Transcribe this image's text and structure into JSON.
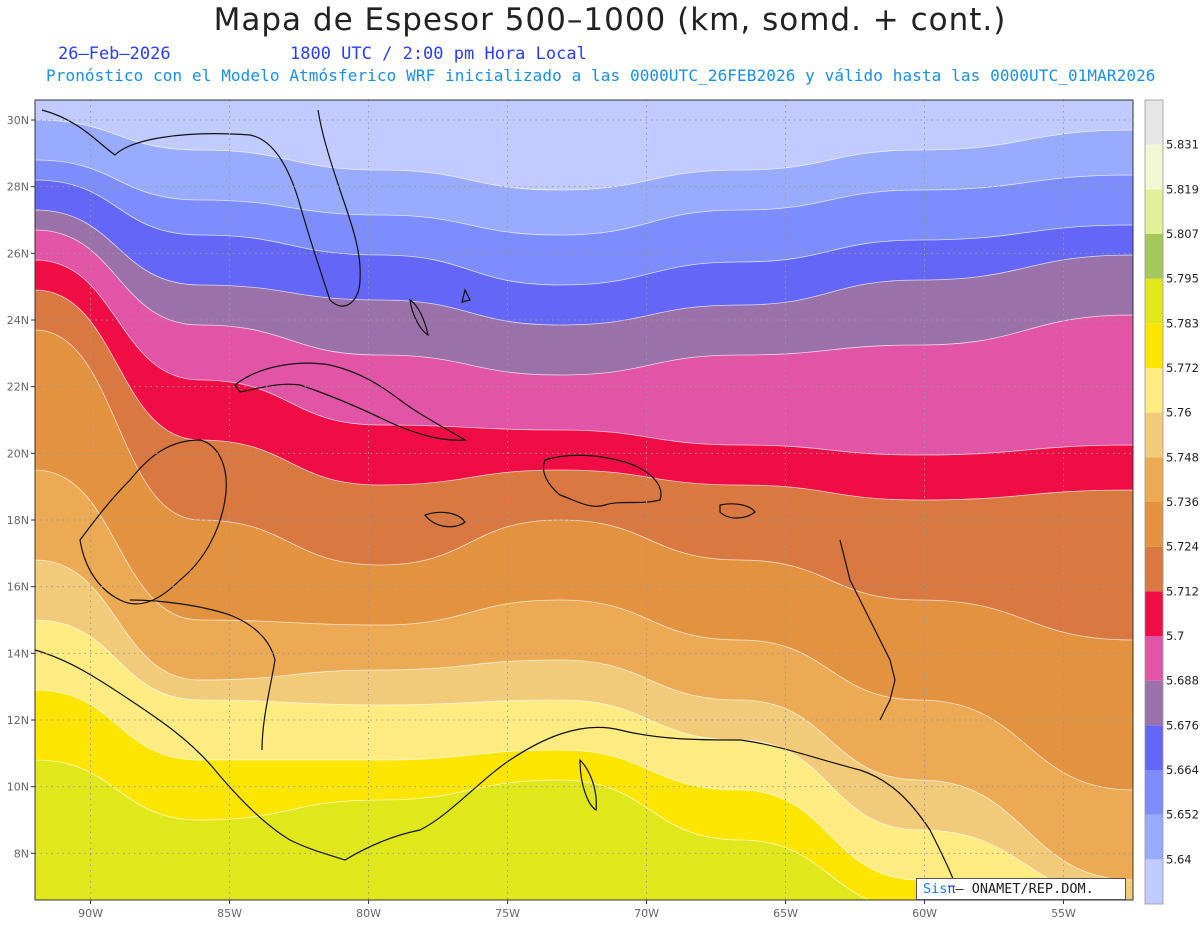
{
  "header": {
    "title": "Mapa de Espesor 500–1000 (km, somd. + cont.)",
    "date": "26–Feb–2026",
    "time": "1800 UTC / 2:00 pm Hora Local",
    "description": "Pronóstico con el Modelo Atmósferico WRF inicializado a las 0000UTC_26FEB2026 y válido hasta las  0000UTC_01MAR2026"
  },
  "map": {
    "lon_range": [
      -92,
      -52.5
    ],
    "lat_range": [
      6.6,
      30.6
    ],
    "lat_ticks": [
      {
        "value": 30,
        "label": "30N"
      },
      {
        "value": 28,
        "label": "28N"
      },
      {
        "value": 26,
        "label": "26N"
      },
      {
        "value": 24,
        "label": "24N"
      },
      {
        "value": 22,
        "label": "22N"
      },
      {
        "value": 20,
        "label": "20N"
      },
      {
        "value": 18,
        "label": "18N"
      },
      {
        "value": 16,
        "label": "16N"
      },
      {
        "value": 14,
        "label": "14N"
      },
      {
        "value": 12,
        "label": "12N"
      },
      {
        "value": 10,
        "label": "10N"
      },
      {
        "value": 8,
        "label": "8N"
      }
    ],
    "lon_ticks": [
      {
        "value": -90,
        "label": "90W"
      },
      {
        "value": -85,
        "label": "85W"
      },
      {
        "value": -80,
        "label": "80W"
      },
      {
        "value": -75,
        "label": "75W"
      },
      {
        "value": -70,
        "label": "70W"
      },
      {
        "value": -65,
        "label": "65W"
      },
      {
        "value": -60,
        "label": "60W"
      },
      {
        "value": -55,
        "label": "55W"
      }
    ],
    "grid": true
  },
  "colorbar": {
    "levels": [
      "5.64",
      "5.652",
      "5.664",
      "5.676",
      "5.688",
      "5.7",
      "5.712",
      "5.724",
      "5.736",
      "5.748",
      "5.76",
      "5.772",
      "5.783",
      "5.795",
      "5.807",
      "5.819",
      "5.831"
    ],
    "colors": [
      "#c2cbff",
      "#98abff",
      "#7d8dff",
      "#6366f6",
      "#9a72a9",
      "#e254a6",
      "#f00d46",
      "#d97840",
      "#e39240",
      "#ecaa54",
      "#f2cb7a",
      "#feeb81",
      "#fce600",
      "#e0e81c",
      "#a6c85a",
      "#e1f19a",
      "#f1f8d2",
      "#e7e7e7"
    ]
  },
  "credit": {
    "brand": "Sis",
    "pi": "π",
    "text": "– ONAMET/REP.DOM."
  }
}
